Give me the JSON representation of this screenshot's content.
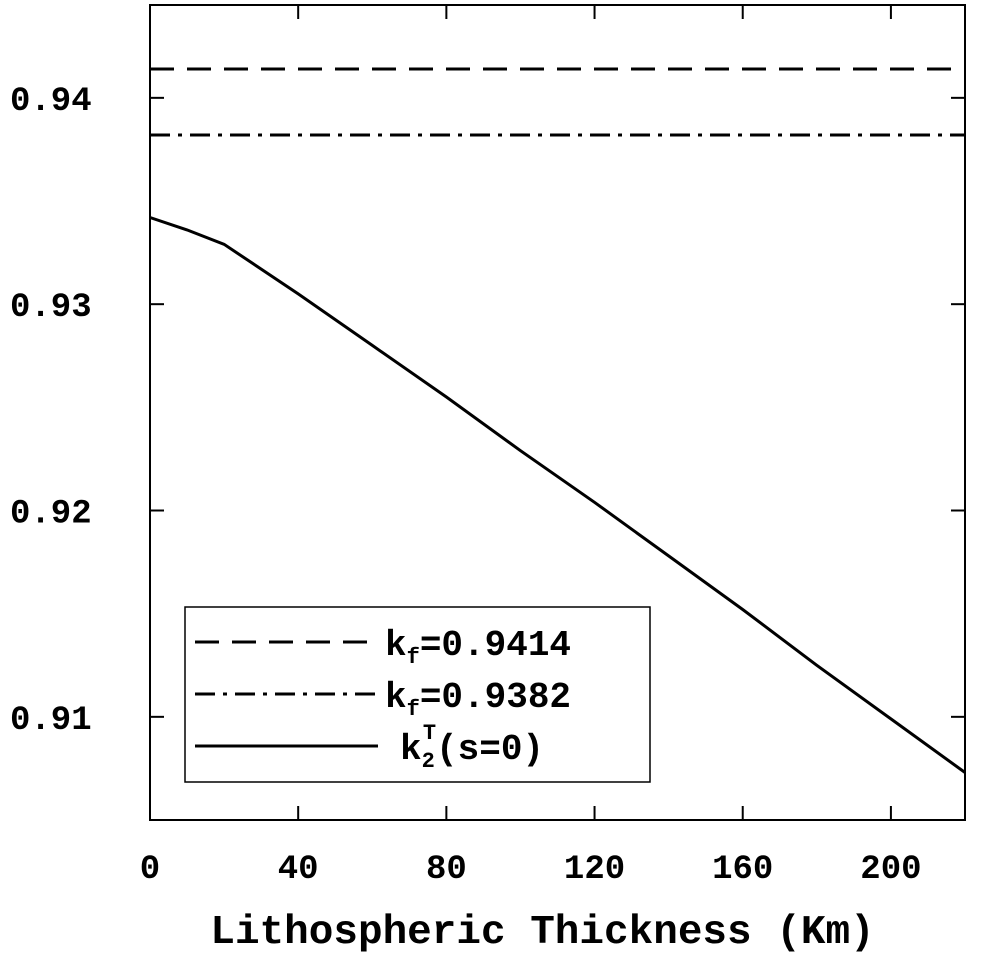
{
  "chart_data": {
    "type": "line",
    "xlabel": "Lithospheric Thickness (Km)",
    "ylabel": "",
    "xlim": [
      0,
      220
    ],
    "ylim": [
      0.905,
      0.9445
    ],
    "x_ticks": [
      0,
      40,
      80,
      120,
      160,
      200
    ],
    "x_tick_labels": [
      "0",
      "40",
      "80",
      "120",
      "160",
      "200"
    ],
    "y_ticks": [
      0.91,
      0.92,
      0.93,
      0.94
    ],
    "y_tick_labels": [
      "0.91",
      "0.92",
      "0.93",
      "0.94"
    ],
    "grid": false,
    "legend_position": "bottom-left",
    "series": [
      {
        "name": "kf=0.9414",
        "legend_main": "k",
        "legend_sub": "f",
        "legend_rest": "=0.9414",
        "style": "dashed",
        "color": "#000000",
        "x": [
          0,
          220
        ],
        "y": [
          0.9414,
          0.9414
        ]
      },
      {
        "name": "kf=0.9382",
        "legend_main": "k",
        "legend_sub": "f",
        "legend_rest": "=0.9382",
        "style": "dashdot",
        "color": "#000000",
        "x": [
          0,
          220
        ],
        "y": [
          0.9382,
          0.9382
        ]
      },
      {
        "name": "k2T(s=0)",
        "legend_main": "k",
        "legend_sub": "2",
        "legend_sup": "T",
        "legend_rest": "(s=0)",
        "style": "solid",
        "color": "#000000",
        "x": [
          0,
          10,
          20,
          40,
          60,
          80,
          100,
          120,
          140,
          160,
          180,
          200,
          220
        ],
        "y": [
          0.9342,
          0.9336,
          0.9329,
          0.9305,
          0.928,
          0.9255,
          0.9229,
          0.9204,
          0.9178,
          0.9152,
          0.9125,
          0.9099,
          0.9073
        ]
      }
    ]
  }
}
